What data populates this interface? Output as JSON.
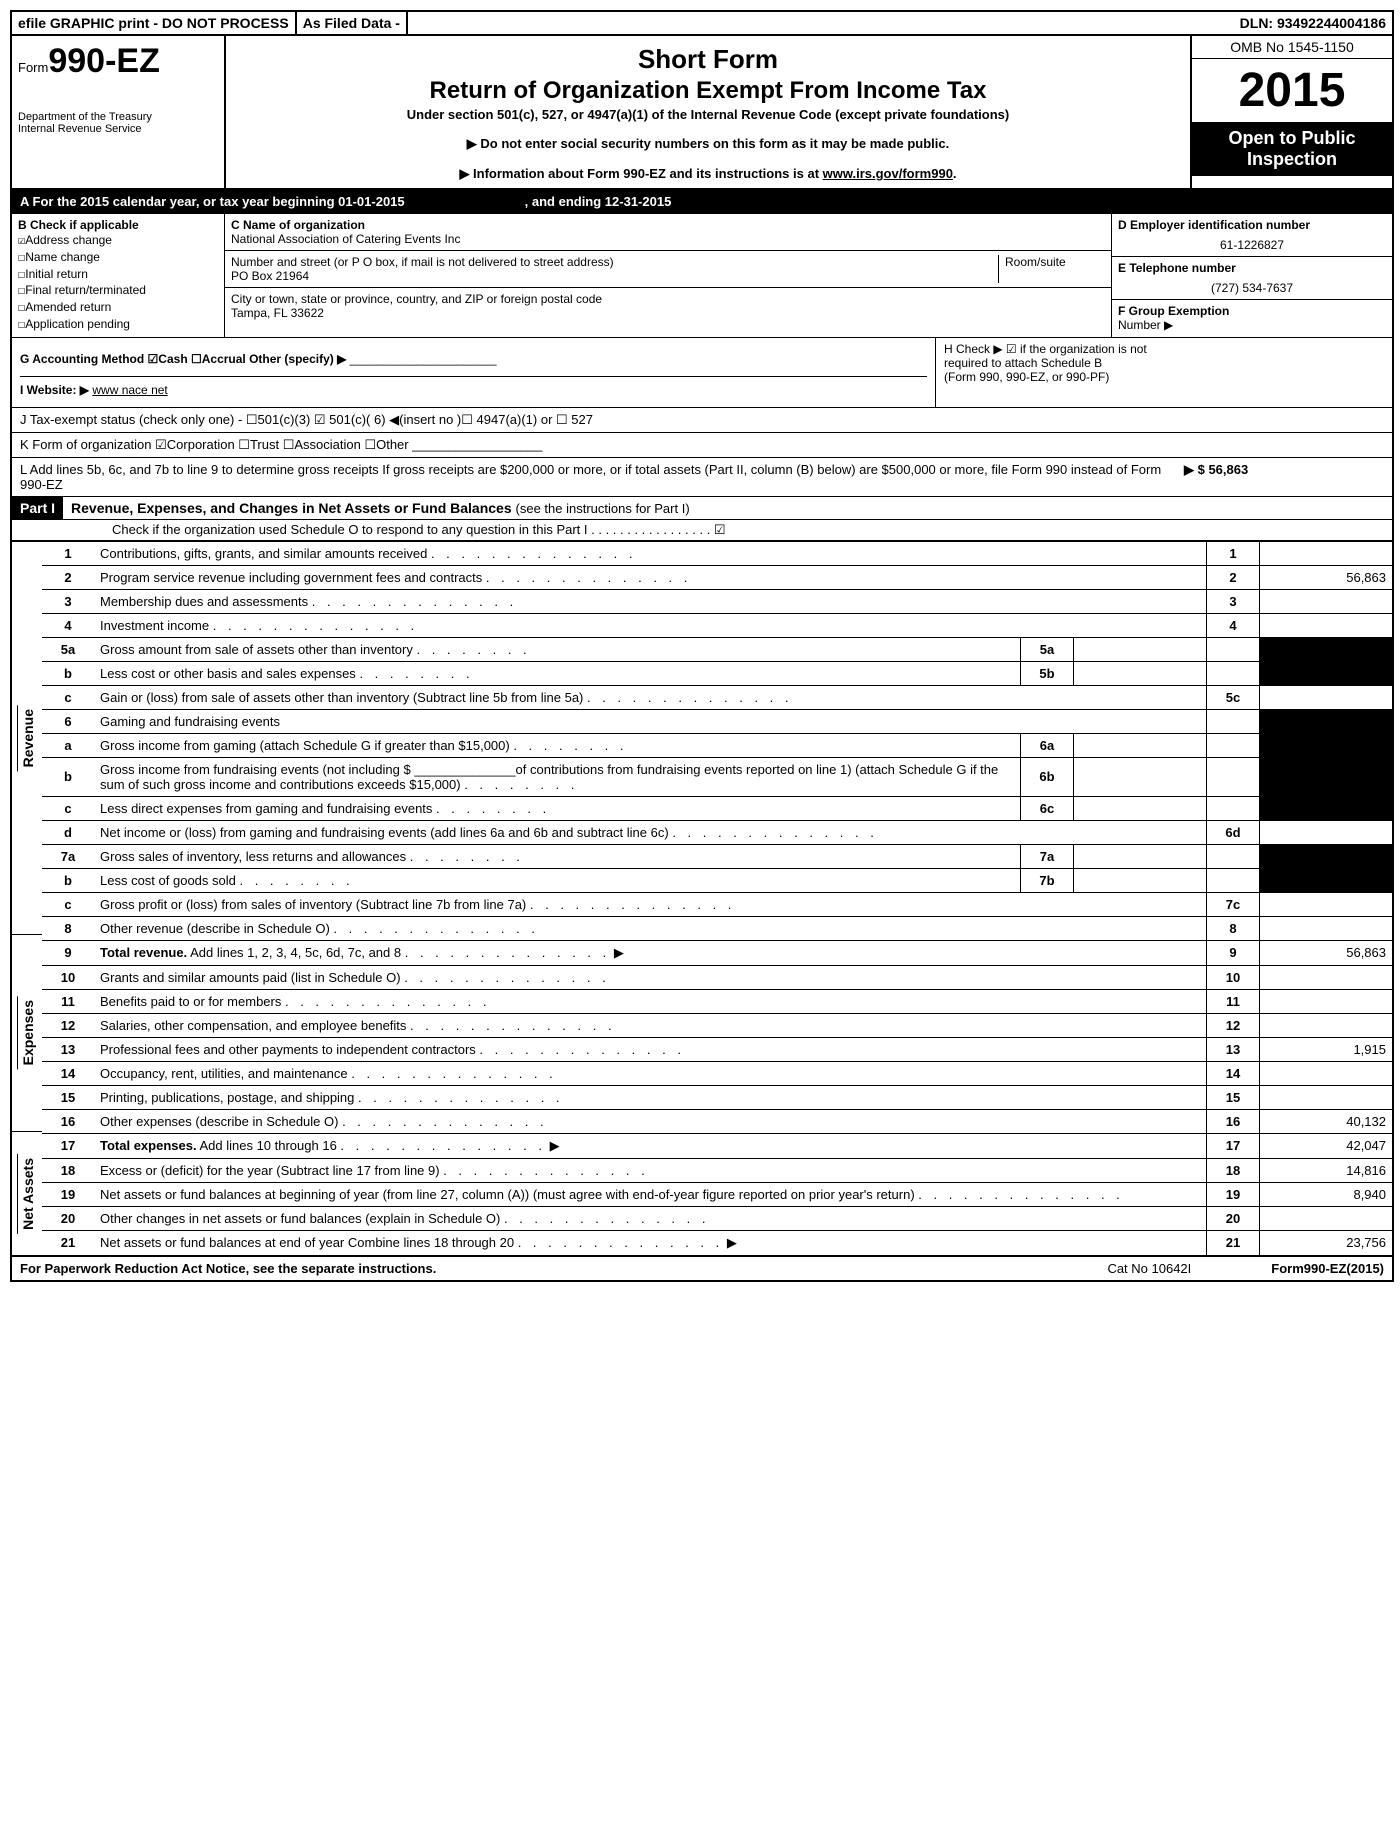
{
  "topbar": {
    "efile": "efile GRAPHIC print - DO NOT PROCESS",
    "asfiled": "As Filed Data -",
    "dln_label": "DLN:",
    "dln": "93492244004186"
  },
  "header": {
    "form_prefix": "Form",
    "form_number": "990-EZ",
    "dept1": "Department of the Treasury",
    "dept2": "Internal Revenue Service",
    "title1": "Short Form",
    "title2": "Return of Organization Exempt From Income Tax",
    "subtitle": "Under section 501(c), 527, or 4947(a)(1) of the Internal Revenue Code (except private foundations)",
    "note1": "▶ Do not enter social security numbers on this form as it may be made public.",
    "note2_pre": "▶ Information about Form 990-EZ and its instructions is at ",
    "note2_link": "www.irs.gov/form990",
    "note2_post": ".",
    "omb": "OMB No 1545-1150",
    "year": "2015",
    "inspection1": "Open to Public",
    "inspection2": "Inspection"
  },
  "line_a": {
    "left": "A  For the 2015 calendar year, or tax year beginning 01-01-2015",
    "right": ", and ending 12-31-2015"
  },
  "section_b": {
    "header": "B  Check if applicable",
    "items": [
      "Address change",
      "Name change",
      "Initial return",
      "Final return/terminated",
      "Amended return",
      "Application pending"
    ]
  },
  "section_c": {
    "name_label": "C Name of organization",
    "name": "National Association of Catering Events Inc",
    "street_label": "Number and street (or P  O  box, if mail is not delivered to street address)",
    "room_label": "Room/suite",
    "street": "PO Box 21964",
    "city_label": "City or town, state or province, country, and ZIP or foreign postal code",
    "city": "Tampa, FL  33622"
  },
  "section_d": {
    "ein_label": "D Employer identification number",
    "ein": "61-1226827",
    "phone_label": "E Telephone number",
    "phone": "(727) 534-7637",
    "group_label": "F Group Exemption",
    "group_label2": "Number  ▶"
  },
  "line_g": {
    "text": "G Accounting Method   ☑Cash  ☐Accrual   Other (specify) ▶"
  },
  "line_h": {
    "text1": "H   Check ▶ ☑ if the organization is not",
    "text2": "required to attach Schedule B",
    "text3": "(Form 990, 990-EZ, or 990-PF)"
  },
  "line_i": {
    "label": "I  Website: ▶",
    "value": "www nace net"
  },
  "line_j": {
    "text": "J Tax-exempt status (check only one) - ☐501(c)(3) ☑ 501(c)( 6) ◀(insert no )☐ 4947(a)(1) or ☐ 527"
  },
  "line_k": {
    "text": "K Form of organization   ☑Corporation  ☐Trust  ☐Association  ☐Other"
  },
  "line_l": {
    "text": "L Add lines 5b, 6c, and 7b to line 9 to determine gross receipts  If gross receipts are $200,000 or more, or if total assets (Part II, column (B) below) are $500,000 or more, file Form 990 instead of Form 990-EZ",
    "amount": "▶ $ 56,863"
  },
  "part1": {
    "label": "Part I",
    "title": "Revenue, Expenses, and Changes in Net Assets or Fund Balances",
    "title_note": "(see the instructions for Part I)",
    "check_note": "Check if the organization used Schedule O to respond to any question in this Part I  . . . . . . . . . . . . . . . . .  ☑"
  },
  "sides": {
    "revenue": "Revenue",
    "expenses": "Expenses",
    "netassets": "Net Assets"
  },
  "lines": [
    {
      "n": "1",
      "t": "Contributions, gifts, grants, and similar amounts received",
      "r": "1",
      "a": ""
    },
    {
      "n": "2",
      "t": "Program service revenue including government fees and contracts",
      "r": "2",
      "a": "56,863"
    },
    {
      "n": "3",
      "t": "Membership dues and assessments",
      "r": "3",
      "a": ""
    },
    {
      "n": "4",
      "t": "Investment income",
      "r": "4",
      "a": ""
    },
    {
      "n": "5a",
      "t": "Gross amount from sale of assets other than inventory",
      "sn": "5a",
      "shade": true
    },
    {
      "n": "b",
      "t": "Less  cost or other basis and sales expenses",
      "sn": "5b",
      "shade": true
    },
    {
      "n": "c",
      "t": "Gain or (loss) from sale of assets other than inventory (Subtract line 5b from line 5a)",
      "r": "5c",
      "a": ""
    },
    {
      "n": "6",
      "t": "Gaming and fundraising events",
      "shade": true,
      "nor": true
    },
    {
      "n": "a",
      "t": "Gross income from gaming (attach Schedule G if greater than $15,000)",
      "sn": "6a",
      "shade": true
    },
    {
      "n": "b",
      "t": "Gross income from fundraising events (not including $ ______________of contributions from fundraising events reported on line 1) (attach Schedule G if the sum of such gross income and contributions exceeds $15,000)",
      "sn": "6b",
      "shade": true
    },
    {
      "n": "c",
      "t": "Less  direct expenses from gaming and fundraising events",
      "sn": "6c",
      "shade": true
    },
    {
      "n": "d",
      "t": "Net income or (loss) from gaming and fundraising events (add lines 6a and 6b and subtract line 6c)",
      "r": "6d",
      "a": ""
    },
    {
      "n": "7a",
      "t": "Gross sales of inventory, less returns and allowances",
      "sn": "7a",
      "shade": true
    },
    {
      "n": "b",
      "t": "Less  cost of goods sold",
      "sn": "7b",
      "shade": true
    },
    {
      "n": "c",
      "t": "Gross profit or (loss) from sales of inventory (Subtract line 7b from line 7a)",
      "r": "7c",
      "a": ""
    },
    {
      "n": "8",
      "t": "Other revenue (describe in Schedule O)",
      "r": "8",
      "a": ""
    },
    {
      "n": "9",
      "t_bold": "Total revenue.",
      "t": " Add lines 1, 2, 3, 4, 5c, 6d, 7c, and 8",
      "r": "9",
      "a": "56,863",
      "arrow": true
    },
    {
      "n": "10",
      "t": "Grants and similar amounts paid (list in Schedule O)",
      "r": "10",
      "a": ""
    },
    {
      "n": "11",
      "t": "Benefits paid to or for members",
      "r": "11",
      "a": ""
    },
    {
      "n": "12",
      "t": "Salaries, other compensation, and employee benefits",
      "r": "12",
      "a": ""
    },
    {
      "n": "13",
      "t": "Professional fees and other payments to independent contractors",
      "r": "13",
      "a": "1,915"
    },
    {
      "n": "14",
      "t": "Occupancy, rent, utilities, and maintenance",
      "r": "14",
      "a": ""
    },
    {
      "n": "15",
      "t": "Printing, publications, postage, and shipping",
      "r": "15",
      "a": ""
    },
    {
      "n": "16",
      "t": "Other expenses (describe in Schedule O)",
      "r": "16",
      "a": "40,132"
    },
    {
      "n": "17",
      "t_bold": "Total expenses.",
      "t": " Add lines 10 through 16",
      "r": "17",
      "a": "42,047",
      "arrow": true
    },
    {
      "n": "18",
      "t": "Excess or (deficit) for the year (Subtract line 17 from line 9)",
      "r": "18",
      "a": "14,816"
    },
    {
      "n": "19",
      "t": "Net assets or fund balances at beginning of year (from line 27, column (A)) (must agree with end-of-year figure reported on prior year's return)",
      "r": "19",
      "a": "8,940",
      "shade_top": true
    },
    {
      "n": "20",
      "t": "Other changes in net assets or fund balances (explain in Schedule O)",
      "r": "20",
      "a": ""
    },
    {
      "n": "21",
      "t": "Net assets or fund balances at end of year  Combine lines 18 through 20",
      "r": "21",
      "a": "23,756",
      "arrow": true
    }
  ],
  "footer": {
    "left": "For Paperwork Reduction Act Notice, see the separate instructions.",
    "mid": "Cat No  10642I",
    "right": "Form 990-EZ (2015)"
  }
}
